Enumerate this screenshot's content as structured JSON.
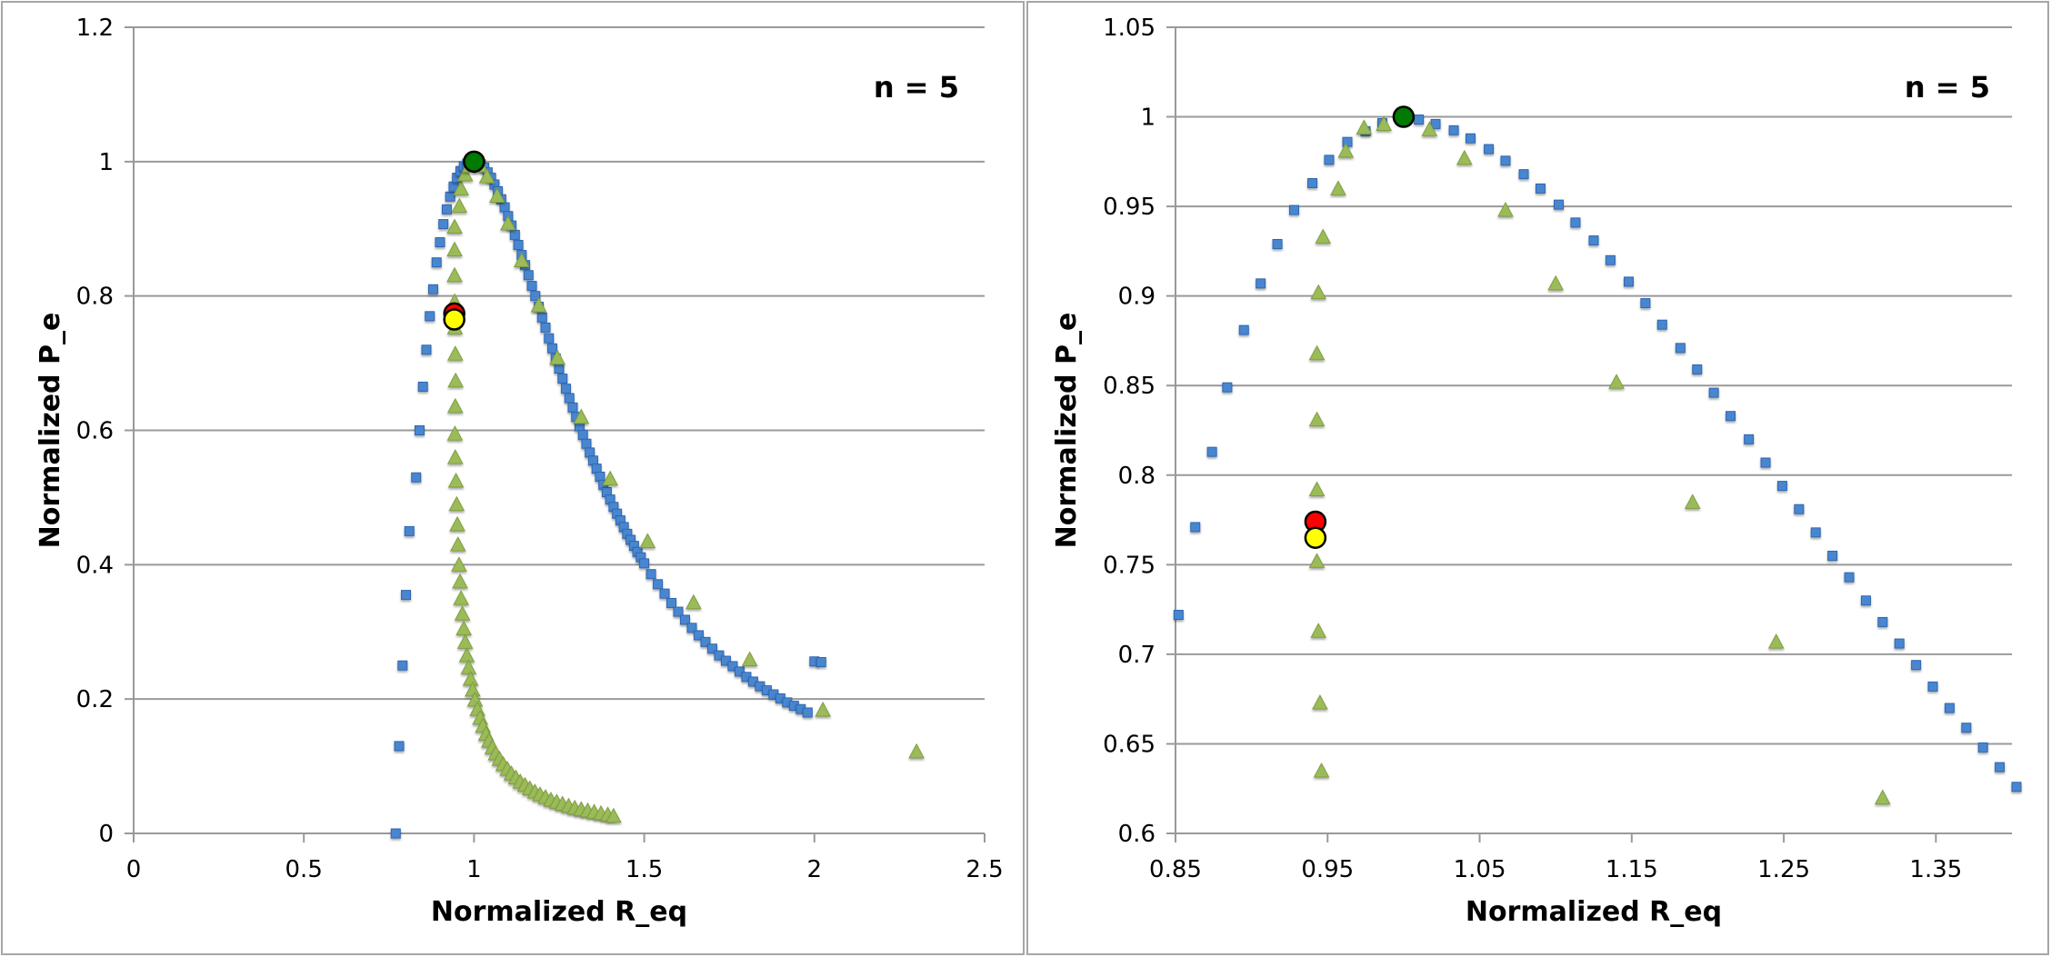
{
  "chart_data": [
    {
      "type": "scatter",
      "title": "",
      "annotation": "n = 5",
      "xlabel": "Normalized R_eq",
      "ylabel": "Normalized P_e",
      "xlim": [
        0,
        2.5
      ],
      "ylim": [
        0,
        1.2
      ],
      "xticks": [
        "0",
        "0.5",
        "1",
        "1.5",
        "2",
        "2.5"
      ],
      "xtick_values": [
        0,
        0.5,
        1,
        1.5,
        2,
        2.5
      ],
      "yticks": [
        "0",
        "0.2",
        "0.4",
        "0.6",
        "0.8",
        "1",
        "1.2"
      ],
      "ytick_values": [
        0,
        0.2,
        0.4,
        0.6,
        0.8,
        1,
        1.2
      ],
      "grid": "horizontal",
      "series": [
        {
          "name": "blue-squares",
          "marker": "square",
          "color": "#4a86d0",
          "x": [
            0.77,
            0.78,
            0.79,
            0.8,
            0.81,
            0.83,
            0.84,
            0.85,
            0.86,
            0.87,
            0.88,
            0.89,
            0.9,
            0.91,
            0.92,
            0.93,
            0.94,
            0.95,
            0.96,
            0.97,
            0.98,
            0.99,
            1.0,
            1.01,
            1.02,
            1.03,
            1.04,
            1.05,
            1.06,
            1.07,
            1.08,
            1.09,
            1.1,
            1.11,
            1.12,
            1.13,
            1.14,
            1.15,
            1.16,
            1.17,
            1.18,
            1.19,
            1.2,
            1.21,
            1.22,
            1.23,
            1.24,
            1.25,
            1.26,
            1.27,
            1.28,
            1.29,
            1.3,
            1.31,
            1.32,
            1.33,
            1.34,
            1.35,
            1.36,
            1.37,
            1.38,
            1.39,
            1.4,
            1.41,
            1.42,
            1.43,
            1.44,
            1.45,
            1.46,
            1.47,
            1.48,
            1.49,
            1.5,
            1.52,
            1.54,
            1.56,
            1.58,
            1.6,
            1.62,
            1.64,
            1.66,
            1.68,
            1.7,
            1.72,
            1.74,
            1.76,
            1.78,
            1.8,
            1.82,
            1.84,
            1.86,
            1.88,
            1.9,
            1.92,
            1.94,
            1.96,
            1.98,
            2.0,
            2.02
          ],
          "y": [
            0.0,
            0.13,
            0.25,
            0.355,
            0.45,
            0.53,
            0.6,
            0.665,
            0.72,
            0.77,
            0.81,
            0.85,
            0.88,
            0.907,
            0.929,
            0.948,
            0.963,
            0.976,
            0.986,
            0.993,
            0.997,
            0.9995,
            1.0,
            0.999,
            0.996,
            0.991,
            0.984,
            0.976,
            0.966,
            0.956,
            0.944,
            0.932,
            0.919,
            0.905,
            0.891,
            0.876,
            0.861,
            0.846,
            0.831,
            0.815,
            0.8,
            0.784,
            0.768,
            0.753,
            0.737,
            0.722,
            0.707,
            0.692,
            0.677,
            0.662,
            0.648,
            0.634,
            0.62,
            0.606,
            0.593,
            0.58,
            0.567,
            0.555,
            0.543,
            0.531,
            0.519,
            0.508,
            0.497,
            0.486,
            0.476,
            0.466,
            0.456,
            0.446,
            0.437,
            0.428,
            0.419,
            0.411,
            0.402,
            0.386,
            0.371,
            0.357,
            0.343,
            0.33,
            0.318,
            0.306,
            0.295,
            0.285,
            0.275,
            0.265,
            0.257,
            0.249,
            0.241,
            0.233,
            0.226,
            0.219,
            0.213,
            0.207,
            0.201,
            0.195,
            0.19,
            0.185,
            0.18,
            0.256,
            0.255
          ]
        },
        {
          "name": "green-triangles",
          "marker": "triangle",
          "color": "#9bbb59",
          "x": [
            0.945,
            0.946,
            0.945,
            0.944,
            0.943,
            0.943,
            0.943,
            0.943,
            0.944,
            0.945,
            0.947,
            0.949,
            0.951,
            0.953,
            0.956,
            0.959,
            0.962,
            0.966,
            0.97,
            0.974,
            0.979,
            0.984,
            0.99,
            0.996,
            1.003,
            1.01,
            1.018,
            1.026,
            1.035,
            1.044,
            1.054,
            1.064,
            1.075,
            1.086,
            1.098,
            1.11,
            1.123,
            1.136,
            1.15,
            1.164,
            1.179,
            1.194,
            1.21,
            1.226,
            1.243,
            1.26,
            1.278,
            1.296,
            1.315,
            1.334,
            1.353,
            1.373,
            1.393,
            1.41,
            0.957,
            0.962,
            0.974,
            0.987,
            1.0,
            1.018,
            1.038,
            1.068,
            1.1,
            1.14,
            1.19,
            1.245,
            1.315,
            1.4,
            1.51,
            1.645,
            1.81,
            2.025,
            2.3
          ],
          "y": [
            0.636,
            0.674,
            0.714,
            0.753,
            0.792,
            0.831,
            0.869,
            0.903,
            0.595,
            0.56,
            0.525,
            0.49,
            0.46,
            0.43,
            0.4,
            0.375,
            0.35,
            0.327,
            0.305,
            0.285,
            0.265,
            0.247,
            0.23,
            0.214,
            0.199,
            0.185,
            0.172,
            0.16,
            0.148,
            0.138,
            0.128,
            0.119,
            0.111,
            0.103,
            0.096,
            0.089,
            0.083,
            0.077,
            0.072,
            0.067,
            0.062,
            0.058,
            0.054,
            0.05,
            0.047,
            0.044,
            0.041,
            0.038,
            0.036,
            0.034,
            0.032,
            0.03,
            0.028,
            0.026,
            0.934,
            0.96,
            0.981,
            0.994,
            1.0,
            0.994,
            0.978,
            0.949,
            0.908,
            0.853,
            0.786,
            0.708,
            0.62,
            0.528,
            0.435,
            0.344,
            0.259,
            0.184,
            0.122
          ]
        },
        {
          "name": "green-circle",
          "marker": "circle",
          "color": "#007a00",
          "x": [
            1.0
          ],
          "y": [
            1.0
          ]
        },
        {
          "name": "red-circle",
          "marker": "circle",
          "color": "#ff0000",
          "x": [
            0.942
          ],
          "y": [
            0.774
          ]
        },
        {
          "name": "yellow-circle",
          "marker": "circle",
          "color": "#ffff00",
          "x": [
            0.942
          ],
          "y": [
            0.765
          ]
        }
      ]
    },
    {
      "type": "scatter",
      "title": "",
      "annotation": "n = 5",
      "xlabel": "Normalized R_eq",
      "ylabel": "Normalized P_e",
      "xlim": [
        0.85,
        1.4
      ],
      "ylim": [
        0.6,
        1.05
      ],
      "xticks": [
        "0.85",
        "0.95",
        "1.05",
        "1.15",
        "1.25",
        "1.35"
      ],
      "xtick_values": [
        0.85,
        0.95,
        1.05,
        1.15,
        1.25,
        1.35
      ],
      "yticks": [
        "0.6",
        "0.65",
        "0.7",
        "0.75",
        "0.8",
        "0.85",
        "0.9",
        "0.95",
        "1",
        "1.05"
      ],
      "ytick_values": [
        0.6,
        0.65,
        0.7,
        0.75,
        0.8,
        0.85,
        0.9,
        0.95,
        1,
        1.05
      ],
      "grid": "horizontal",
      "series": [
        {
          "name": "blue-squares",
          "marker": "square",
          "color": "#4a86d0",
          "x": [
            0.852,
            0.863,
            0.874,
            0.884,
            0.895,
            0.906,
            0.917,
            0.928,
            0.94,
            0.951,
            0.963,
            0.975,
            0.986,
            0.998,
            1.01,
            1.021,
            1.033,
            1.044,
            1.056,
            1.067,
            1.079,
            1.09,
            1.102,
            1.113,
            1.125,
            1.136,
            1.148,
            1.159,
            1.17,
            1.182,
            1.193,
            1.204,
            1.215,
            1.227,
            1.238,
            1.249,
            1.26,
            1.271,
            1.282,
            1.293,
            1.304,
            1.315,
            1.326,
            1.337,
            1.348,
            1.359,
            1.37,
            1.381,
            1.392,
            1.403
          ],
          "y": [
            0.722,
            0.771,
            0.813,
            0.849,
            0.881,
            0.907,
            0.929,
            0.948,
            0.963,
            0.976,
            0.986,
            0.992,
            0.9965,
            0.999,
            0.9985,
            0.996,
            0.9925,
            0.988,
            0.982,
            0.9755,
            0.968,
            0.96,
            0.951,
            0.941,
            0.931,
            0.92,
            0.908,
            0.896,
            0.884,
            0.871,
            0.859,
            0.846,
            0.833,
            0.82,
            0.807,
            0.794,
            0.781,
            0.768,
            0.755,
            0.743,
            0.73,
            0.718,
            0.706,
            0.694,
            0.682,
            0.67,
            0.659,
            0.648,
            0.637,
            0.626
          ]
        },
        {
          "name": "green-triangles",
          "marker": "triangle",
          "color": "#9bbb59",
          "x": [
            0.946,
            0.945,
            0.944,
            0.943,
            0.943,
            0.943,
            0.943,
            0.944,
            0.947,
            0.957,
            0.962,
            0.974,
            0.987,
            1.017,
            1.04,
            1.067,
            1.1,
            1.14,
            1.19,
            1.245,
            1.315
          ],
          "y": [
            0.635,
            0.673,
            0.713,
            0.752,
            0.792,
            0.831,
            0.868,
            0.902,
            0.933,
            0.96,
            0.981,
            0.994,
            0.996,
            0.993,
            0.977,
            0.948,
            0.907,
            0.852,
            0.785,
            0.707,
            0.62
          ]
        },
        {
          "name": "green-circle",
          "marker": "circle",
          "color": "#007a00",
          "x": [
            1.0
          ],
          "y": [
            1.0
          ]
        },
        {
          "name": "red-circle",
          "marker": "circle",
          "color": "#ff0000",
          "x": [
            0.942
          ],
          "y": [
            0.774
          ]
        },
        {
          "name": "yellow-circle",
          "marker": "circle",
          "color": "#ffff00",
          "x": [
            0.942
          ],
          "y": [
            0.765
          ]
        }
      ]
    }
  ]
}
